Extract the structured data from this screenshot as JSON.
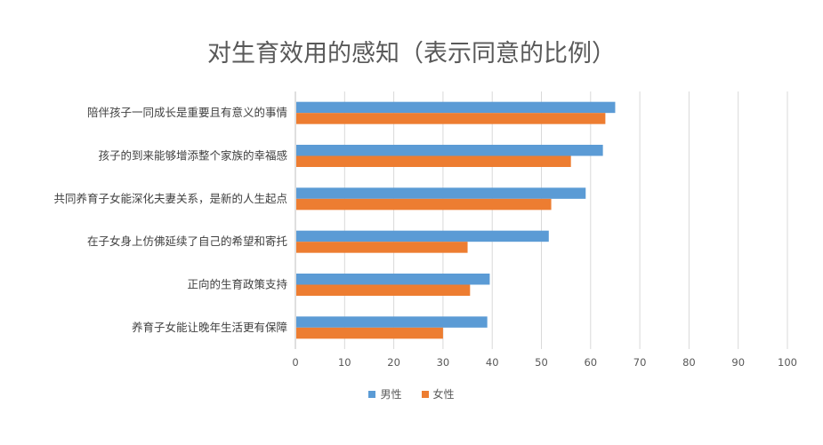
{
  "chart_data": {
    "type": "bar",
    "orientation": "horizontal",
    "title": "对生育效用的感知（表示同意的比例）",
    "categories": [
      "陪伴孩子一同成长是重要且有意义的事情",
      "孩子的到来能够增添整个家族的幸福感",
      "共同养育子女能深化夫妻关系，是新的人生起点",
      "在子女身上仿佛延续了自己的希望和寄托",
      "正向的生育政策支持",
      "养育子女能让晚年生活更有保障"
    ],
    "series": [
      {
        "name": "男性",
        "color": "#5B9BD5",
        "values": [
          65,
          62.5,
          59,
          51.5,
          39.5,
          39
        ]
      },
      {
        "name": "女性",
        "color": "#ED7D31",
        "values": [
          63,
          56,
          52,
          35,
          35.5,
          30
        ]
      }
    ],
    "xlim": [
      0,
      100
    ],
    "xticks": [
      0,
      10,
      20,
      30,
      40,
      50,
      60,
      70,
      80,
      90,
      100
    ],
    "grid": true,
    "legend_position": "bottom"
  }
}
